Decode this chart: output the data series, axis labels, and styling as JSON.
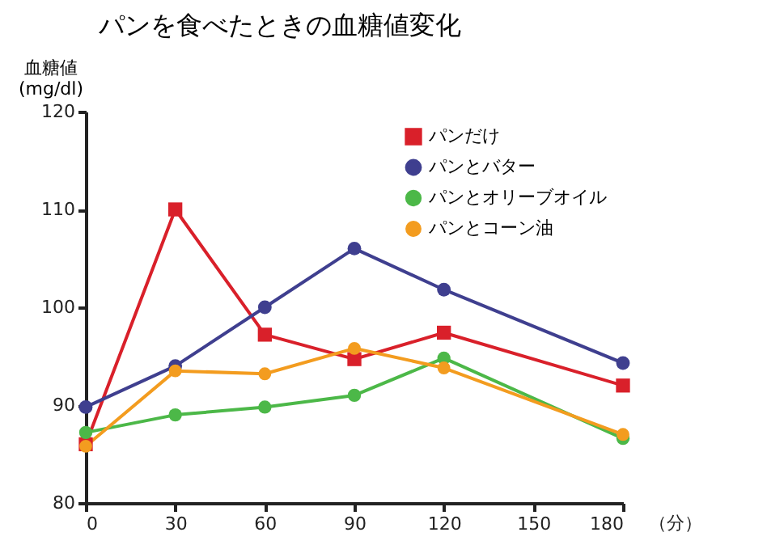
{
  "chart_data": {
    "type": "line",
    "title": "パンを食べたときの血糖値変化",
    "ylabel": "血糖値\n(mg/dl)",
    "xlabel": "（分）",
    "x": [
      0,
      30,
      60,
      90,
      120,
      180
    ],
    "series": [
      {
        "name": "パンだけ",
        "color": "#d9202a",
        "marker": "square",
        "values": [
          86,
          110,
          97.2,
          94.7,
          97.4,
          92
        ]
      },
      {
        "name": "パンとバター",
        "color": "#3f3f8f",
        "marker": "circle",
        "values": [
          89.8,
          94,
          100,
          106,
          101.8,
          94.3
        ]
      },
      {
        "name": "パンとオリーブオイル",
        "color": "#4cb848",
        "marker": "circle",
        "values": [
          87.2,
          89,
          89.8,
          91,
          94.8,
          86.6
        ]
      },
      {
        "name": "パンとコーン油",
        "color": "#f39c1f",
        "marker": "circle",
        "values": [
          85.8,
          93.5,
          93.2,
          95.8,
          93.8,
          87
        ]
      }
    ],
    "xlim": [
      0,
      180
    ],
    "xticks": [
      0,
      30,
      60,
      90,
      120,
      150,
      180
    ],
    "ylim": [
      80,
      120
    ],
    "yticks": [
      80,
      90,
      100,
      110,
      120
    ],
    "grid": false,
    "legend": "top right",
    "line_style": "solid"
  }
}
